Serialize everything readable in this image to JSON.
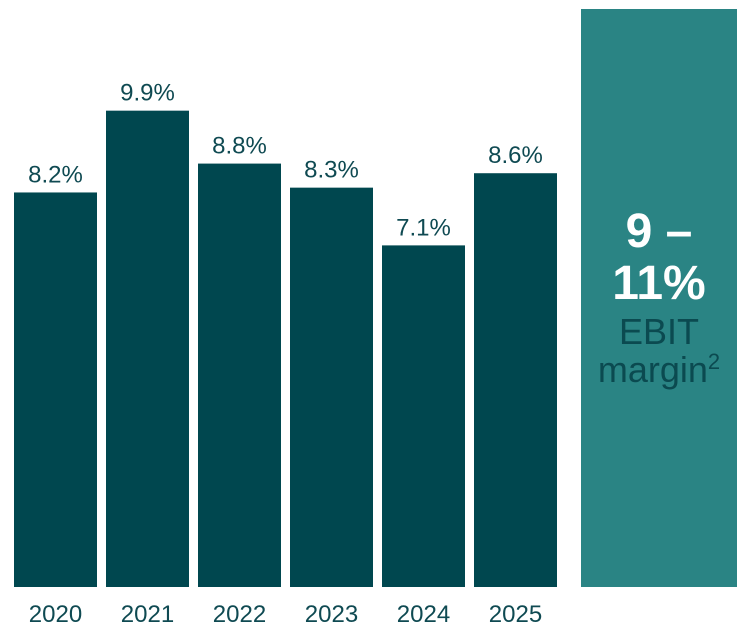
{
  "chart_data": {
    "type": "bar",
    "categories": [
      "2020",
      "2021",
      "2022",
      "2023",
      "2024",
      "2025"
    ],
    "values": [
      8.2,
      9.9,
      8.8,
      8.3,
      7.1,
      8.6
    ],
    "value_labels": [
      "8.2%",
      "9.9%",
      "8.8%",
      "8.3%",
      "7.1%",
      "8.6%"
    ],
    "ylim": [
      0,
      12.2
    ],
    "grid": false,
    "legend": "none",
    "title": "",
    "xlabel": "",
    "ylabel": ""
  },
  "target": {
    "value": "9 – 11%",
    "label": "EBIT",
    "sublabel": "margin",
    "footnote": "2"
  },
  "colors": {
    "bar": "#00474f",
    "target_box": "#2a8484",
    "label_text": "#0f4a52",
    "target_value_text": "#ffffff"
  }
}
